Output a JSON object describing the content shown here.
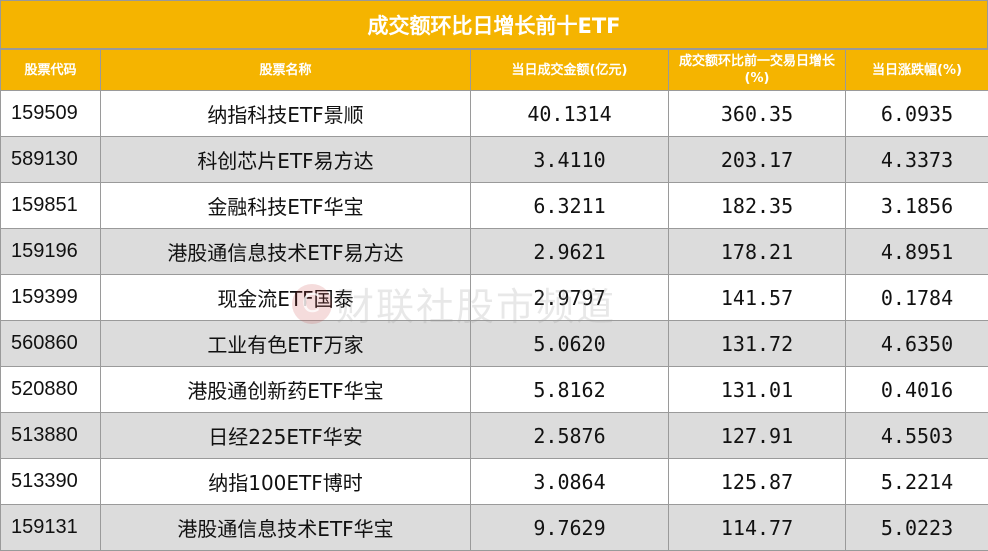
{
  "title": "成交额环比日增长前十ETF",
  "headers": {
    "code": "股票代码",
    "name": "股票名称",
    "turnover": "当日成交金额(亿元)",
    "growth": "成交额环比前一交易日增长(%)",
    "change": "当日涨跌幅(%)"
  },
  "rows": [
    {
      "code": "159509",
      "name": "纳指科技ETF景顺",
      "turnover": "40.1314",
      "growth": "360.35",
      "change": "6.0935"
    },
    {
      "code": "589130",
      "name": "科创芯片ETF易方达",
      "turnover": "3.4110",
      "growth": "203.17",
      "change": "4.3373"
    },
    {
      "code": "159851",
      "name": "金融科技ETF华宝",
      "turnover": "6.3211",
      "growth": "182.35",
      "change": "3.1856"
    },
    {
      "code": "159196",
      "name": "港股通信息技术ETF易方达",
      "turnover": "2.9621",
      "growth": "178.21",
      "change": "4.8951"
    },
    {
      "code": "159399",
      "name": "现金流ETF国泰",
      "turnover": "2.9797",
      "growth": "141.57",
      "change": "0.1784"
    },
    {
      "code": "560860",
      "name": "工业有色ETF万家",
      "turnover": "5.0620",
      "growth": "131.72",
      "change": "4.6350"
    },
    {
      "code": "520880",
      "name": "港股通创新药ETF华宝",
      "turnover": "5.8162",
      "growth": "131.01",
      "change": "0.4016"
    },
    {
      "code": "513880",
      "name": "日经225ETF华安",
      "turnover": "2.5876",
      "growth": "127.91",
      "change": "4.5503"
    },
    {
      "code": "513390",
      "name": "纳指100ETF博时",
      "turnover": "3.0864",
      "growth": "125.87",
      "change": "5.2214"
    },
    {
      "code": "159131",
      "name": "港股通信息技术ETF华宝",
      "turnover": "9.7629",
      "growth": "114.77",
      "change": "5.0223"
    }
  ],
  "watermark": {
    "logo": "C",
    "text": "财联社股市频道"
  }
}
